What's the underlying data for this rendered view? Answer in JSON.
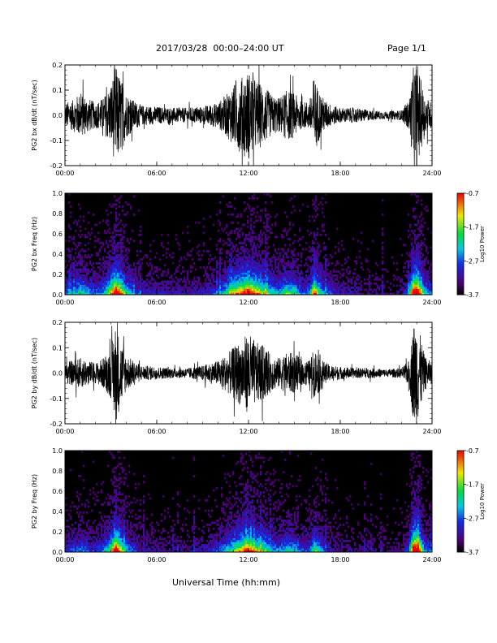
{
  "header": {
    "title": "2017/03/28  00:00–24:00 UT",
    "page": "Page 1/1"
  },
  "chart_data": [
    {
      "type": "line",
      "title": "",
      "ylabel": "PG2 bx dB/dt (nT/sec)",
      "xlabel": "",
      "x_range_hours": [
        0,
        24
      ],
      "xticks": [
        "00:00",
        "06:00",
        "12:00",
        "18:00",
        "24:00"
      ],
      "ylim": [
        -0.2,
        0.2
      ],
      "yticks": [
        "-0.2",
        "-0.1",
        "0.0",
        "0.1",
        "0.2"
      ],
      "activity_envelope": {
        "hours": [
          0,
          0.5,
          1.0,
          1.5,
          2.0,
          2.5,
          3.0,
          3.3,
          3.6,
          4.0,
          4.5,
          5.0,
          6.0,
          7.0,
          8.0,
          9.0,
          10.0,
          10.5,
          11.0,
          11.5,
          12.0,
          12.5,
          13.0,
          13.5,
          14.0,
          14.5,
          15.0,
          15.5,
          16.0,
          16.3,
          16.6,
          17.0,
          17.5,
          18.0,
          19.0,
          20.0,
          21.0,
          22.0,
          22.5,
          22.8,
          23.0,
          23.5,
          24.0
        ],
        "amplitude": [
          0.05,
          0.06,
          0.09,
          0.07,
          0.05,
          0.07,
          0.12,
          0.2,
          0.16,
          0.09,
          0.06,
          0.04,
          0.035,
          0.03,
          0.03,
          0.035,
          0.05,
          0.08,
          0.12,
          0.15,
          0.18,
          0.14,
          0.12,
          0.08,
          0.07,
          0.1,
          0.09,
          0.05,
          0.06,
          0.16,
          0.1,
          0.06,
          0.04,
          0.03,
          0.03,
          0.02,
          0.015,
          0.02,
          0.06,
          0.2,
          0.22,
          0.08,
          0.05
        ]
      }
    },
    {
      "type": "heatmap",
      "title": "",
      "ylabel": "PG2 bx Freq (Hz)",
      "xlabel": "",
      "x_range_hours": [
        0,
        24
      ],
      "xticks": [
        "00:00",
        "06:00",
        "12:00",
        "18:00",
        "24:00"
      ],
      "ylim": [
        0.0,
        1.0
      ],
      "yticks": [
        "0.0",
        "0.2",
        "0.4",
        "0.6",
        "0.8",
        "1.0"
      ],
      "colorbar": {
        "label": "Log10 Power",
        "range": [
          -3.7,
          -0.7
        ],
        "ticks": [
          "-0.7",
          "-1.7",
          "-2.7",
          "-3.7"
        ]
      },
      "activity_envelope_ref": 0
    },
    {
      "type": "line",
      "title": "",
      "ylabel": "PG2 by dB/dt (nT/sec)",
      "xlabel": "",
      "x_range_hours": [
        0,
        24
      ],
      "xticks": [
        "00:00",
        "06:00",
        "12:00",
        "18:00",
        "24:00"
      ],
      "ylim": [
        -0.2,
        0.2
      ],
      "yticks": [
        "-0.2",
        "-0.1",
        "0.0",
        "0.1",
        "0.2"
      ],
      "activity_envelope": {
        "hours": [
          0,
          0.5,
          1.0,
          1.5,
          2.0,
          2.5,
          3.0,
          3.3,
          3.6,
          4.0,
          4.5,
          5.0,
          6.0,
          7.0,
          8.0,
          9.0,
          10.0,
          10.5,
          11.0,
          11.5,
          12.0,
          12.5,
          13.0,
          13.5,
          14.0,
          14.5,
          15.0,
          15.5,
          16.0,
          16.3,
          16.6,
          17.0,
          17.5,
          18.0,
          19.0,
          20.0,
          21.0,
          22.0,
          22.5,
          22.8,
          23.0,
          23.5,
          24.0
        ],
        "amplitude": [
          0.04,
          0.05,
          0.06,
          0.05,
          0.04,
          0.06,
          0.1,
          0.2,
          0.14,
          0.07,
          0.05,
          0.03,
          0.025,
          0.02,
          0.02,
          0.03,
          0.05,
          0.07,
          0.1,
          0.13,
          0.16,
          0.12,
          0.11,
          0.07,
          0.06,
          0.08,
          0.08,
          0.05,
          0.05,
          0.1,
          0.08,
          0.04,
          0.03,
          0.025,
          0.02,
          0.02,
          0.015,
          0.02,
          0.05,
          0.2,
          0.22,
          0.07,
          0.04
        ]
      }
    },
    {
      "type": "heatmap",
      "title": "",
      "ylabel": "PG2 by Freq (Hz)",
      "xlabel": "Universal Time (hh:mm)",
      "x_range_hours": [
        0,
        24
      ],
      "xticks": [
        "00:00",
        "06:00",
        "12:00",
        "18:00",
        "24:00"
      ],
      "ylim": [
        0.0,
        1.0
      ],
      "yticks": [
        "0.0",
        "0.2",
        "0.4",
        "0.6",
        "0.8",
        "1.0"
      ],
      "colorbar": {
        "label": "Log10 Power",
        "range": [
          -3.7,
          -0.7
        ],
        "ticks": [
          "-0.7",
          "-1.7",
          "-2.7",
          "-3.7"
        ]
      },
      "activity_envelope_ref": 2
    }
  ],
  "colors": {
    "background": "#ffffff",
    "trace": "#000000",
    "spectrogram_background": "#000000"
  }
}
